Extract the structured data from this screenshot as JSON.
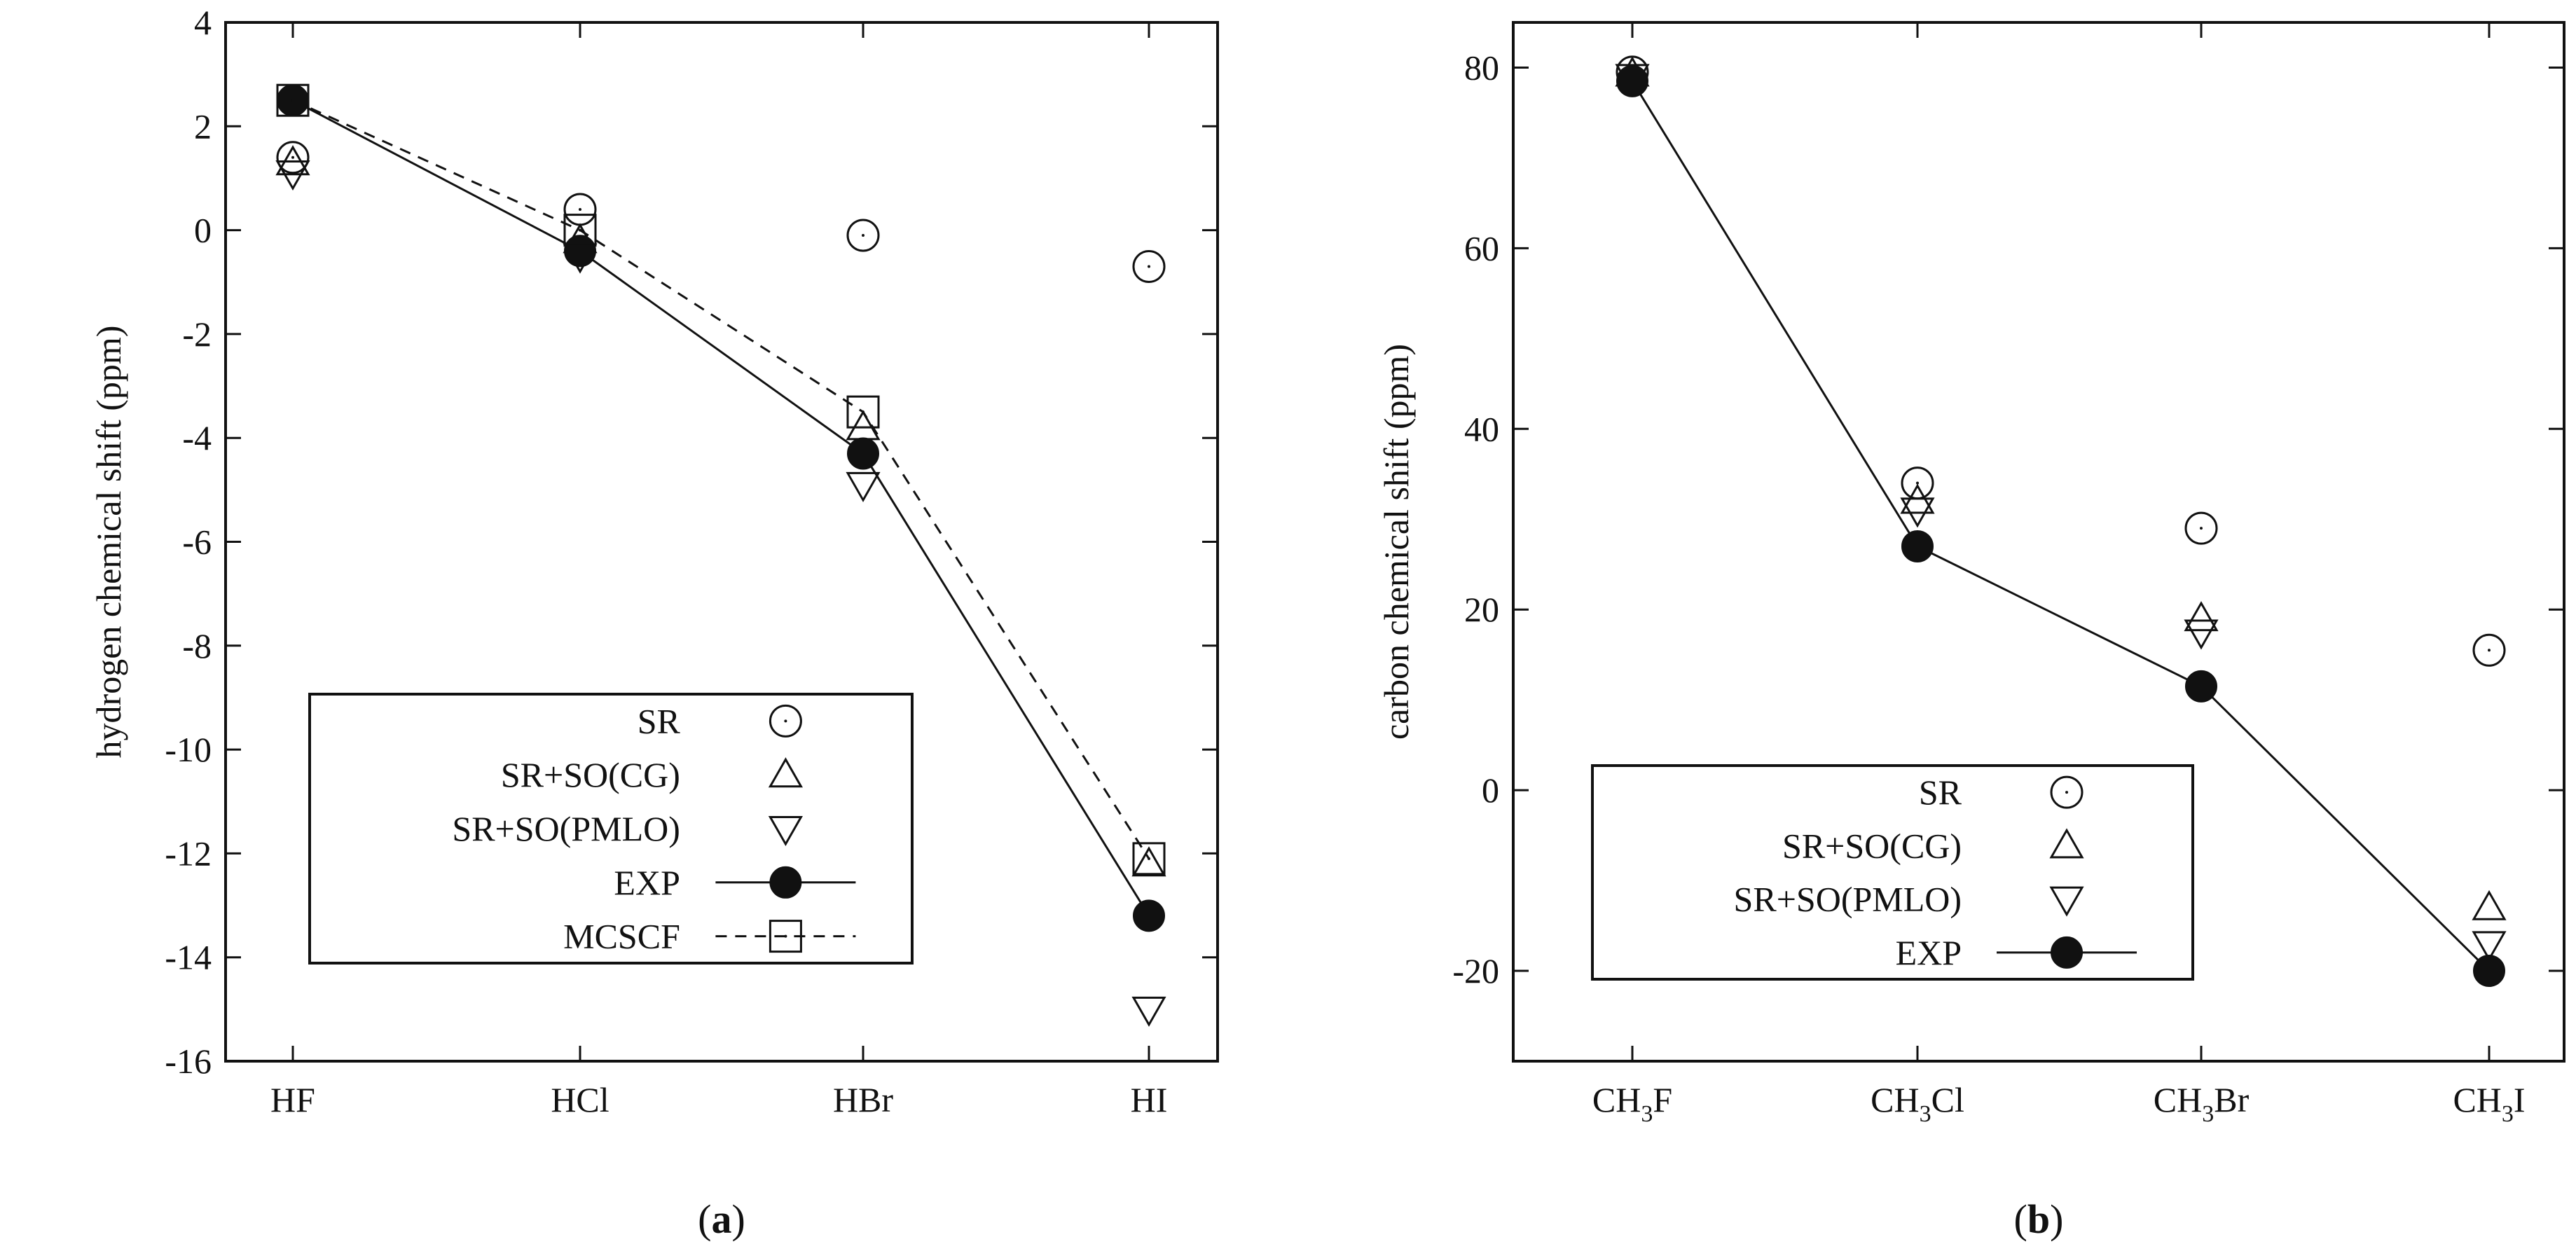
{
  "chart_data": [
    {
      "type": "scatter",
      "panel_label": "a",
      "ylabel": "hydrogen chemical shift (ppm)",
      "categories": [
        "HF",
        "HCl",
        "HBr",
        "HI"
      ],
      "ylim": [
        -16,
        4
      ],
      "yticks": [
        "4",
        "2",
        "0",
        "-2",
        "-4",
        "-6",
        "-8",
        "-10",
        "-12",
        "-14",
        "-16"
      ],
      "series": [
        {
          "name": "SR",
          "marker": "circle-open",
          "line": "none",
          "values": [
            1.4,
            0.4,
            -0.1,
            -0.7
          ]
        },
        {
          "name": "SR+SO(CG)",
          "marker": "triangle-up-open",
          "line": "none",
          "values": [
            1.3,
            -0.2,
            -3.8,
            -12.2
          ]
        },
        {
          "name": "SR+SO(PMLO)",
          "marker": "triangle-down-open",
          "line": "none",
          "values": [
            1.1,
            -0.5,
            -4.9,
            -15.0
          ]
        },
        {
          "name": "EXP",
          "marker": "circle-filled",
          "line": "solid",
          "values": [
            2.5,
            -0.4,
            -4.3,
            -13.2
          ]
        },
        {
          "name": "MCSCF",
          "marker": "square-open",
          "line": "dashed",
          "values": [
            2.5,
            0.0,
            -3.5,
            -12.1
          ]
        }
      ],
      "legend": "bottom-left",
      "grid": false
    },
    {
      "type": "scatter",
      "panel_label": "b",
      "ylabel": "carbon chemical shift (ppm)",
      "categories": [
        {
          "pre": "CH",
          "sub": "3",
          "post": "F"
        },
        {
          "pre": "CH",
          "sub": "3",
          "post": "Cl"
        },
        {
          "pre": "CH",
          "sub": "3",
          "post": "Br"
        },
        {
          "pre": "CH",
          "sub": "3",
          "post": "I"
        }
      ],
      "ylim": [
        -30,
        85
      ],
      "yticks": [
        "80",
        "60",
        "40",
        "20",
        "0",
        "-20"
      ],
      "series": [
        {
          "name": "SR",
          "marker": "circle-open",
          "line": "none",
          "values": [
            79.5,
            34,
            29,
            15.5
          ]
        },
        {
          "name": "SR+SO(CG)",
          "marker": "triangle-up-open",
          "line": "none",
          "values": [
            79.3,
            32,
            19,
            -13
          ]
        },
        {
          "name": "SR+SO(PMLO)",
          "marker": "triangle-down-open",
          "line": "none",
          "values": [
            79.0,
            31,
            17.5,
            -17
          ]
        },
        {
          "name": "EXP",
          "marker": "circle-filled",
          "line": "solid",
          "values": [
            78.5,
            27,
            11.5,
            -20
          ]
        }
      ],
      "legend": "bottom-left",
      "grid": false
    }
  ]
}
